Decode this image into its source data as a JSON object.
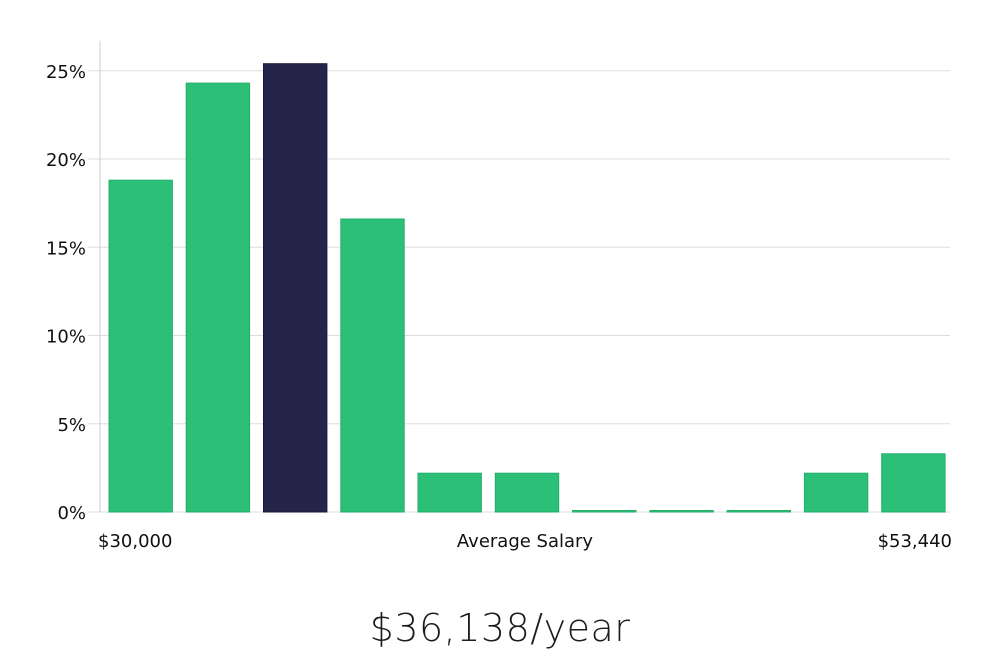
{
  "chart_data": {
    "type": "bar",
    "title": "",
    "xlabel": "Average Salary",
    "ylabel": "",
    "x_range_labels": {
      "min": "$30,000",
      "max": "$53,440"
    },
    "yticks": [
      "0%",
      "5%",
      "10%",
      "15%",
      "20%",
      "25%"
    ],
    "ylim": [
      0,
      26.7
    ],
    "values": [
      18.8,
      24.3,
      25.4,
      16.6,
      2.2,
      2.2,
      0.0,
      0.0,
      0.0,
      2.2,
      3.3
    ],
    "highlight_index": 2,
    "colors": {
      "bar": "#2bbf77",
      "bar_stroke": "#22b06a",
      "highlight": "#27244a",
      "grid": "#dddddd",
      "axis": "#cccccc"
    }
  },
  "summary": {
    "salary_text": "$36,138/year"
  }
}
